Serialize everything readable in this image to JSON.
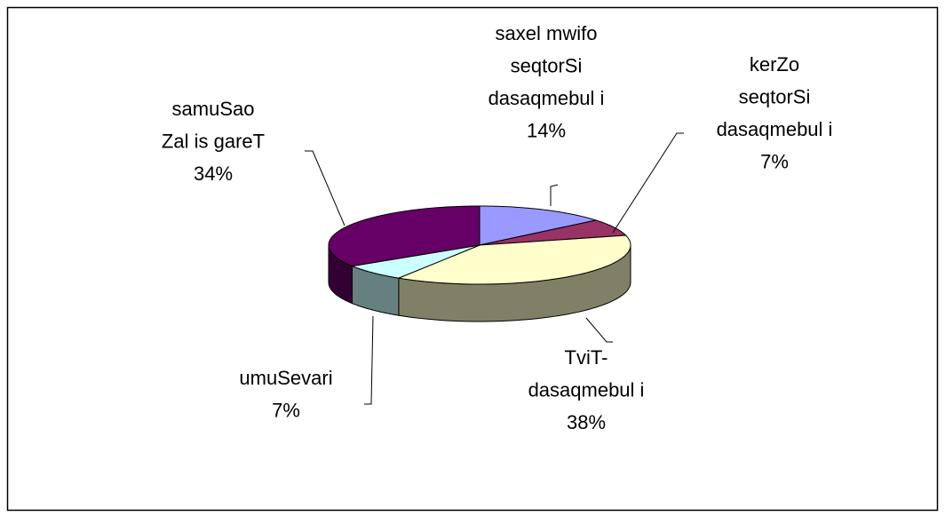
{
  "chart_data": {
    "type": "pie3d",
    "categories": [
      "saxel mwifo\nseqtorSi\ndasaqmebul i",
      "kerZo\nseqtorSi\ndasaqmebul i",
      "TviT-\ndasaqmebul i",
      "umuSevari",
      "samuSao\nZal is gareT"
    ],
    "values": [
      14,
      7,
      38,
      7,
      34
    ],
    "value_labels": [
      "14%",
      "7%",
      "38%",
      "7%",
      "34%"
    ],
    "colors": [
      "#9999ff",
      "#993366",
      "#ffffcc",
      "#ccffff",
      "#660066"
    ]
  }
}
